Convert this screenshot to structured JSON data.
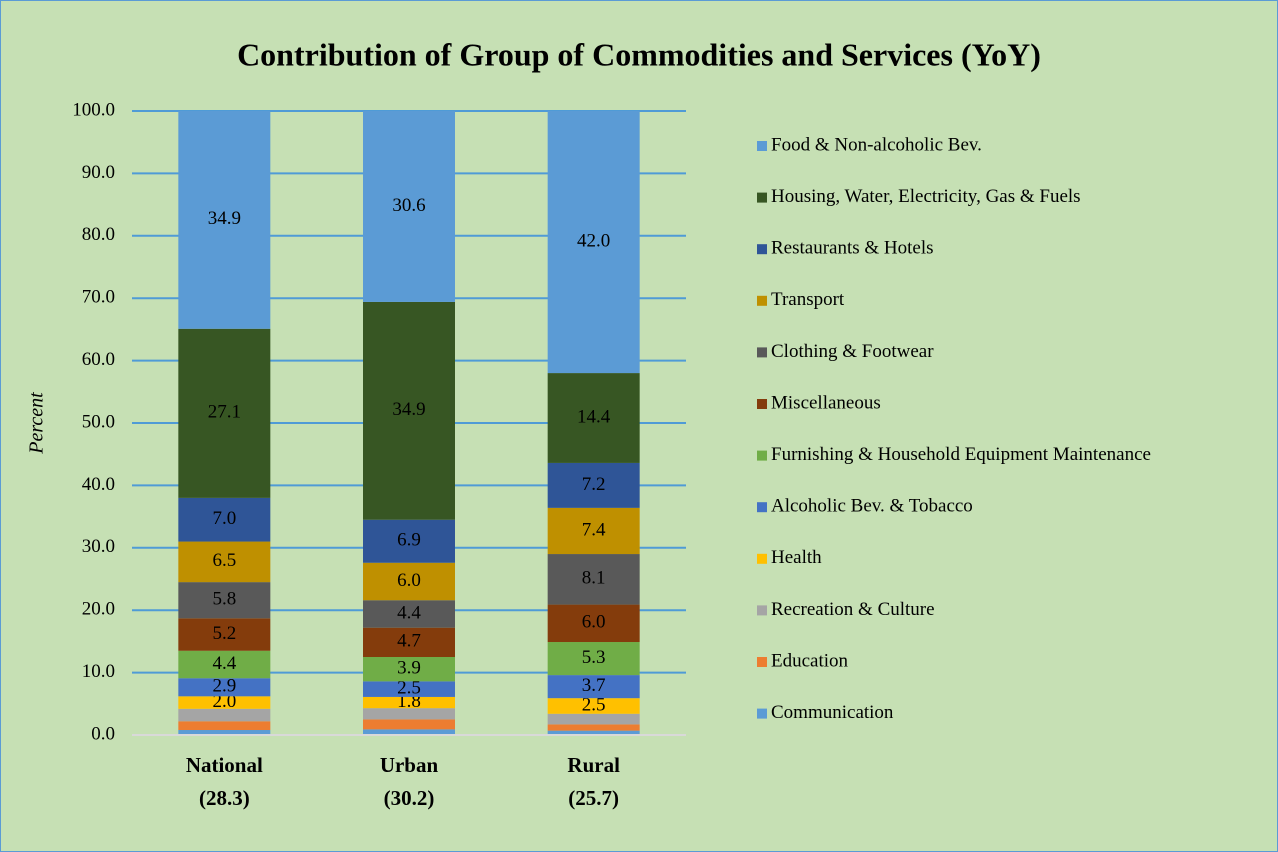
{
  "chart_data": {
    "type": "stacked_bar",
    "title": "Contribution of Group of Commodities and Services (YoY)",
    "y_label": "Percent",
    "categories": [
      "National",
      "Urban",
      "Rural"
    ],
    "category_sublabels": [
      "(28.3)",
      "(30.2)",
      "(25.7)"
    ],
    "ylim": [
      0,
      100
    ],
    "yticks": [
      {
        "value": 0,
        "label": "0.0"
      },
      {
        "value": 10,
        "label": "10.0"
      },
      {
        "value": 20,
        "label": "20.0"
      },
      {
        "value": 30,
        "label": "30.0"
      },
      {
        "value": 40,
        "label": "40.0"
      },
      {
        "value": 50,
        "label": "50.0"
      },
      {
        "value": 60,
        "label": "60.0"
      },
      {
        "value": 70,
        "label": "70.0"
      },
      {
        "value": 80,
        "label": "80.0"
      },
      {
        "value": 90,
        "label": "90.0"
      },
      {
        "value": 100,
        "label": "100.0"
      }
    ],
    "grid": true,
    "legend": "right",
    "series": [
      {
        "name": "Food & Non-alcoholic Bev.",
        "color": "#5b9bd5",
        "values": [
          34.9,
          30.6,
          42.0
        ],
        "value_labels": [
          "34.9",
          "30.6",
          "42.0"
        ]
      },
      {
        "name": "Housing, Water, Electricity, Gas & Fuels",
        "color": "#375623",
        "values": [
          27.1,
          34.9,
          14.4
        ],
        "value_labels": [
          "27.1",
          "34.9",
          "14.4"
        ]
      },
      {
        "name": "Restaurants & Hotels",
        "color": "#2f5597",
        "values": [
          7.0,
          6.9,
          7.2
        ],
        "value_labels": [
          "7.0",
          "6.9",
          "7.2"
        ]
      },
      {
        "name": "Transport",
        "color": "#bf9000",
        "values": [
          6.5,
          6.0,
          7.4
        ],
        "value_labels": [
          "6.5",
          "6.0",
          "7.4"
        ]
      },
      {
        "name": "Clothing & Footwear",
        "color": "#595959",
        "values": [
          5.8,
          4.4,
          8.1
        ],
        "value_labels": [
          "5.8",
          "4.4",
          "8.1"
        ]
      },
      {
        "name": "Miscellaneous",
        "color": "#843c0c",
        "values": [
          5.2,
          4.7,
          6.0
        ],
        "value_labels": [
          "5.2",
          "4.7",
          "6.0"
        ]
      },
      {
        "name": "Furnishing & Household Equipment Maintenance",
        "color": "#70ad47",
        "values": [
          4.4,
          3.9,
          5.3
        ],
        "value_labels": [
          "4.4",
          "3.9",
          "5.3"
        ]
      },
      {
        "name": "Alcoholic Bev. & Tobacco",
        "color": "#4472c4",
        "values": [
          2.9,
          2.5,
          3.7
        ],
        "value_labels": [
          "2.9",
          "2.5",
          "3.7"
        ]
      },
      {
        "name": "Health",
        "color": "#ffc000",
        "values": [
          2.0,
          1.8,
          2.5
        ],
        "value_labels": [
          "2.0",
          "1.8",
          "2.5"
        ]
      },
      {
        "name": "Recreation & Culture",
        "color": "#a5a5a5",
        "values": [
          2.0,
          1.8,
          1.7
        ],
        "value_labels": [
          null,
          null,
          null
        ]
      },
      {
        "name": "Education",
        "color": "#ed7d31",
        "values": [
          1.4,
          1.6,
          1.0
        ],
        "value_labels": [
          null,
          null,
          null
        ]
      },
      {
        "name": "Communication",
        "color": "#5b9bd5",
        "values": [
          0.8,
          0.9,
          0.7
        ],
        "value_labels": [
          null,
          null,
          null
        ]
      }
    ]
  }
}
